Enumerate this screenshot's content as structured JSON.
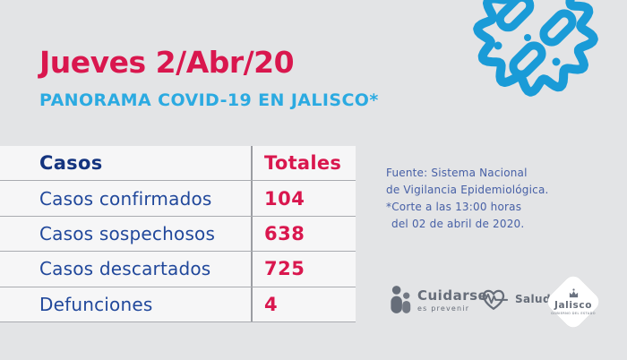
{
  "page": {
    "date_title": "Jueves 2/Abr/20",
    "subtitle": "PANORAMA COVID-19 EN JALISCO*"
  },
  "table": {
    "columns": {
      "cases": "Casos",
      "totals": "Totales"
    },
    "rows": [
      {
        "label": "Casos confirmados",
        "value": "104"
      },
      {
        "label": "Casos sospechosos",
        "value": "638"
      },
      {
        "label": "Casos descartados",
        "value": "725"
      },
      {
        "label": "Defunciones",
        "value": "4"
      }
    ]
  },
  "source_note": {
    "line1": "Fuente: Sistema Nacional",
    "line2": "de Vigilancia Epidemiológica.",
    "line3": "*Corte a las 13:00 horas",
    "line4": "del 02 de abril de 2020."
  },
  "footer": {
    "cuidarse": {
      "title": "Cuidarse",
      "subtitle": "es prevenir"
    },
    "salud": {
      "label": "Salud"
    },
    "jalisco": {
      "label": "Jalisco",
      "caption": "GOBIERNO DEL ESTADO"
    }
  },
  "icons": {
    "virus": "virus-icon",
    "cuidarse_people": "people-icon",
    "salud_heart": "heart-ecg-icon",
    "jalisco_crest": "crest-icon"
  },
  "colors": {
    "accent_red": "#d9174e",
    "accent_lightblue": "#2baae1",
    "header_navy": "#14347f",
    "row_label_blue": "#21489b",
    "note_blue": "#4760a6",
    "virus_blue": "#1a9bd7",
    "logo_gray": "#666d79",
    "background": "#e3e4e6",
    "table_background": "#f6f6f7"
  },
  "chart_data": {
    "type": "table",
    "title": "PANORAMA COVID-19 EN JALISCO*",
    "date": "Jueves 2/Abr/20",
    "columns": [
      "Casos",
      "Totales"
    ],
    "rows": [
      [
        "Casos confirmados",
        104
      ],
      [
        "Casos sospechosos",
        638
      ],
      [
        "Casos descartados",
        725
      ],
      [
        "Defunciones",
        4
      ]
    ],
    "source": "Fuente: Sistema Nacional de Vigilancia Epidemiológica. *Corte a las 13:00 horas del 02 de abril de 2020."
  }
}
